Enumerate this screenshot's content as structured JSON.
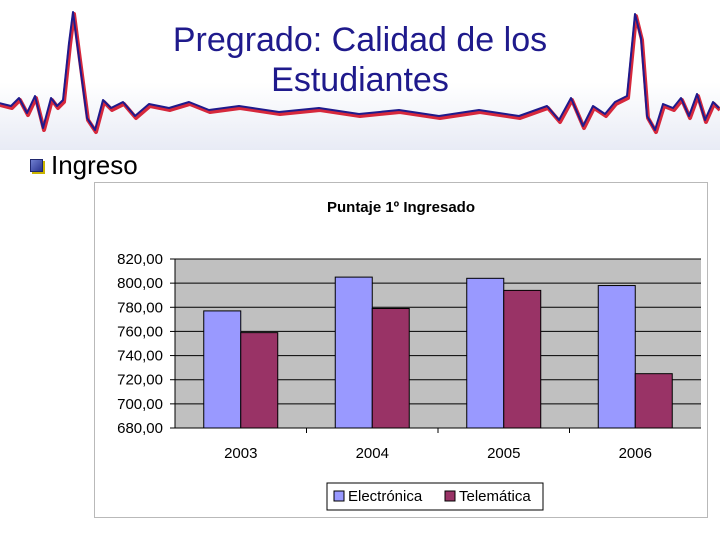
{
  "slide": {
    "title_line1": "Pregrado: Calidad de los",
    "title_line2": "Estudiantes",
    "bullet": "Ingreso"
  },
  "colors": {
    "title": "#1f1a8c",
    "wave_red": "#d6283c",
    "wave_blue": "#1f1a8c",
    "plot_bg": "#c0c0c0",
    "electronica": "#9999ff",
    "telematica": "#993366"
  },
  "chart_data": {
    "type": "bar",
    "title": "Puntaje 1º Ingresado",
    "categories": [
      "2003",
      "2004",
      "2005",
      "2006"
    ],
    "series": [
      {
        "name": "Electrónica",
        "values": [
          777,
          805,
          804,
          798
        ]
      },
      {
        "name": "Telemática",
        "values": [
          759,
          779,
          794,
          725
        ]
      }
    ],
    "ylim": [
      680,
      820
    ],
    "yticks": [
      "820,00",
      "800,00",
      "780,00",
      "760,00",
      "740,00",
      "720,00",
      "700,00",
      "680,00"
    ],
    "grid": true,
    "legend": "bottom"
  }
}
